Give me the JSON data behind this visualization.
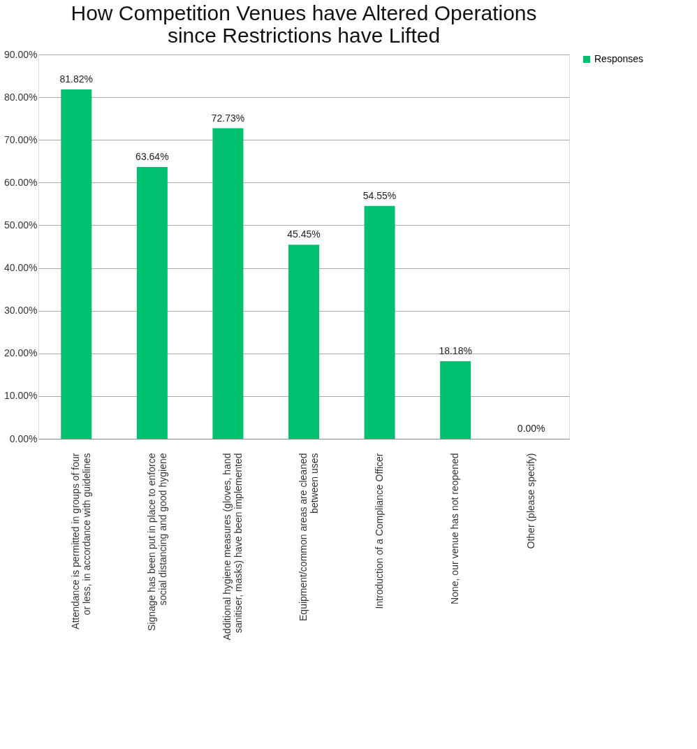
{
  "chart_data": {
    "type": "bar",
    "title": [
      "How Competition Venues have Altered Operations",
      "since Restrictions have Lifted"
    ],
    "categories": [
      "Attendance is permitted in groups of four or less, in accordance with guidelines",
      "Signage has been put in place to enforce social distancing and good hygiene",
      "Additional hygiene measures (gloves, hand sanitiser, masks) have been implemented",
      "Equipment/common areas are cleaned between uses",
      "Introduction of a Compliance Officer",
      "None, our venue has not reopened",
      "Other (please specify)"
    ],
    "series": [
      {
        "name": "Responses",
        "color": "#00bf6f",
        "values": [
          81.82,
          63.64,
          72.73,
          45.45,
          54.55,
          18.18,
          0
        ],
        "value_labels": [
          "81.82%",
          "63.64%",
          "72.73%",
          "45.45%",
          "54.55%",
          "18.18%",
          "0.00%"
        ]
      }
    ],
    "ylim": [
      0,
      90
    ],
    "yticks": [
      {
        "value": 0,
        "label": "0.00%"
      },
      {
        "value": 10,
        "label": "10.00%"
      },
      {
        "value": 20,
        "label": "20.00%"
      },
      {
        "value": 30,
        "label": "30.00%"
      },
      {
        "value": 40,
        "label": "40.00%"
      },
      {
        "value": 50,
        "label": "50.00%"
      },
      {
        "value": 60,
        "label": "60.00%"
      },
      {
        "value": 70,
        "label": "70.00%"
      },
      {
        "value": 80,
        "label": "80.00%"
      },
      {
        "value": 90,
        "label": "90.00%"
      }
    ],
    "grid": "y",
    "legend": "right"
  }
}
